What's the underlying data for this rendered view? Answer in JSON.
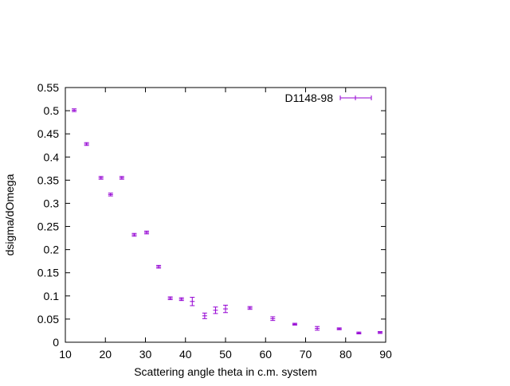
{
  "chart_data": {
    "type": "scatter",
    "title": "",
    "xlabel": "Scattering angle theta in c.m. system",
    "ylabel": "dsigma/dOmega",
    "xlim": [
      10,
      90
    ],
    "ylim": [
      0,
      0.55
    ],
    "xticks": [
      10,
      20,
      30,
      40,
      50,
      60,
      70,
      80,
      90
    ],
    "yticks": [
      0,
      0.05,
      0.1,
      0.15,
      0.2,
      0.25,
      0.3,
      0.35,
      0.4,
      0.45,
      0.5,
      0.55
    ],
    "xtick_labels": [
      "10",
      "20",
      "30",
      "40",
      "50",
      "60",
      "70",
      "80",
      "90"
    ],
    "ytick_labels": [
      "0",
      "0.05",
      "0.1",
      "0.15",
      "0.2",
      "0.25",
      "0.3",
      "0.35",
      "0.4",
      "0.45",
      "0.5",
      "0.55"
    ],
    "grid": false,
    "legend_position": "top-right",
    "series": [
      {
        "name": "D1148-98",
        "color": "#9400d3",
        "marker": "plus-with-errorbars",
        "points": [
          {
            "x": 12.2,
            "y": 0.501,
            "err": 0.003
          },
          {
            "x": 15.3,
            "y": 0.428,
            "err": 0.003
          },
          {
            "x": 18.9,
            "y": 0.355,
            "err": 0.003
          },
          {
            "x": 21.3,
            "y": 0.319,
            "err": 0.003
          },
          {
            "x": 24.1,
            "y": 0.355,
            "err": 0.003
          },
          {
            "x": 27.2,
            "y": 0.232,
            "err": 0.003
          },
          {
            "x": 30.3,
            "y": 0.237,
            "err": 0.003
          },
          {
            "x": 33.3,
            "y": 0.163,
            "err": 0.003
          },
          {
            "x": 36.2,
            "y": 0.095,
            "err": 0.003
          },
          {
            "x": 39.0,
            "y": 0.093,
            "err": 0.003
          },
          {
            "x": 41.7,
            "y": 0.088,
            "err": 0.009
          },
          {
            "x": 44.8,
            "y": 0.057,
            "err": 0.006
          },
          {
            "x": 47.5,
            "y": 0.069,
            "err": 0.007
          },
          {
            "x": 50.0,
            "y": 0.072,
            "err": 0.008
          },
          {
            "x": 56.1,
            "y": 0.074,
            "err": 0.003
          },
          {
            "x": 61.8,
            "y": 0.051,
            "err": 0.004
          },
          {
            "x": 67.3,
            "y": 0.039,
            "err": 0.002
          },
          {
            "x": 72.9,
            "y": 0.03,
            "err": 0.004
          },
          {
            "x": 78.4,
            "y": 0.029,
            "err": 0.002
          },
          {
            "x": 83.3,
            "y": 0.02,
            "err": 0.002
          },
          {
            "x": 88.6,
            "y": 0.021,
            "err": 0.002
          }
        ]
      }
    ]
  }
}
